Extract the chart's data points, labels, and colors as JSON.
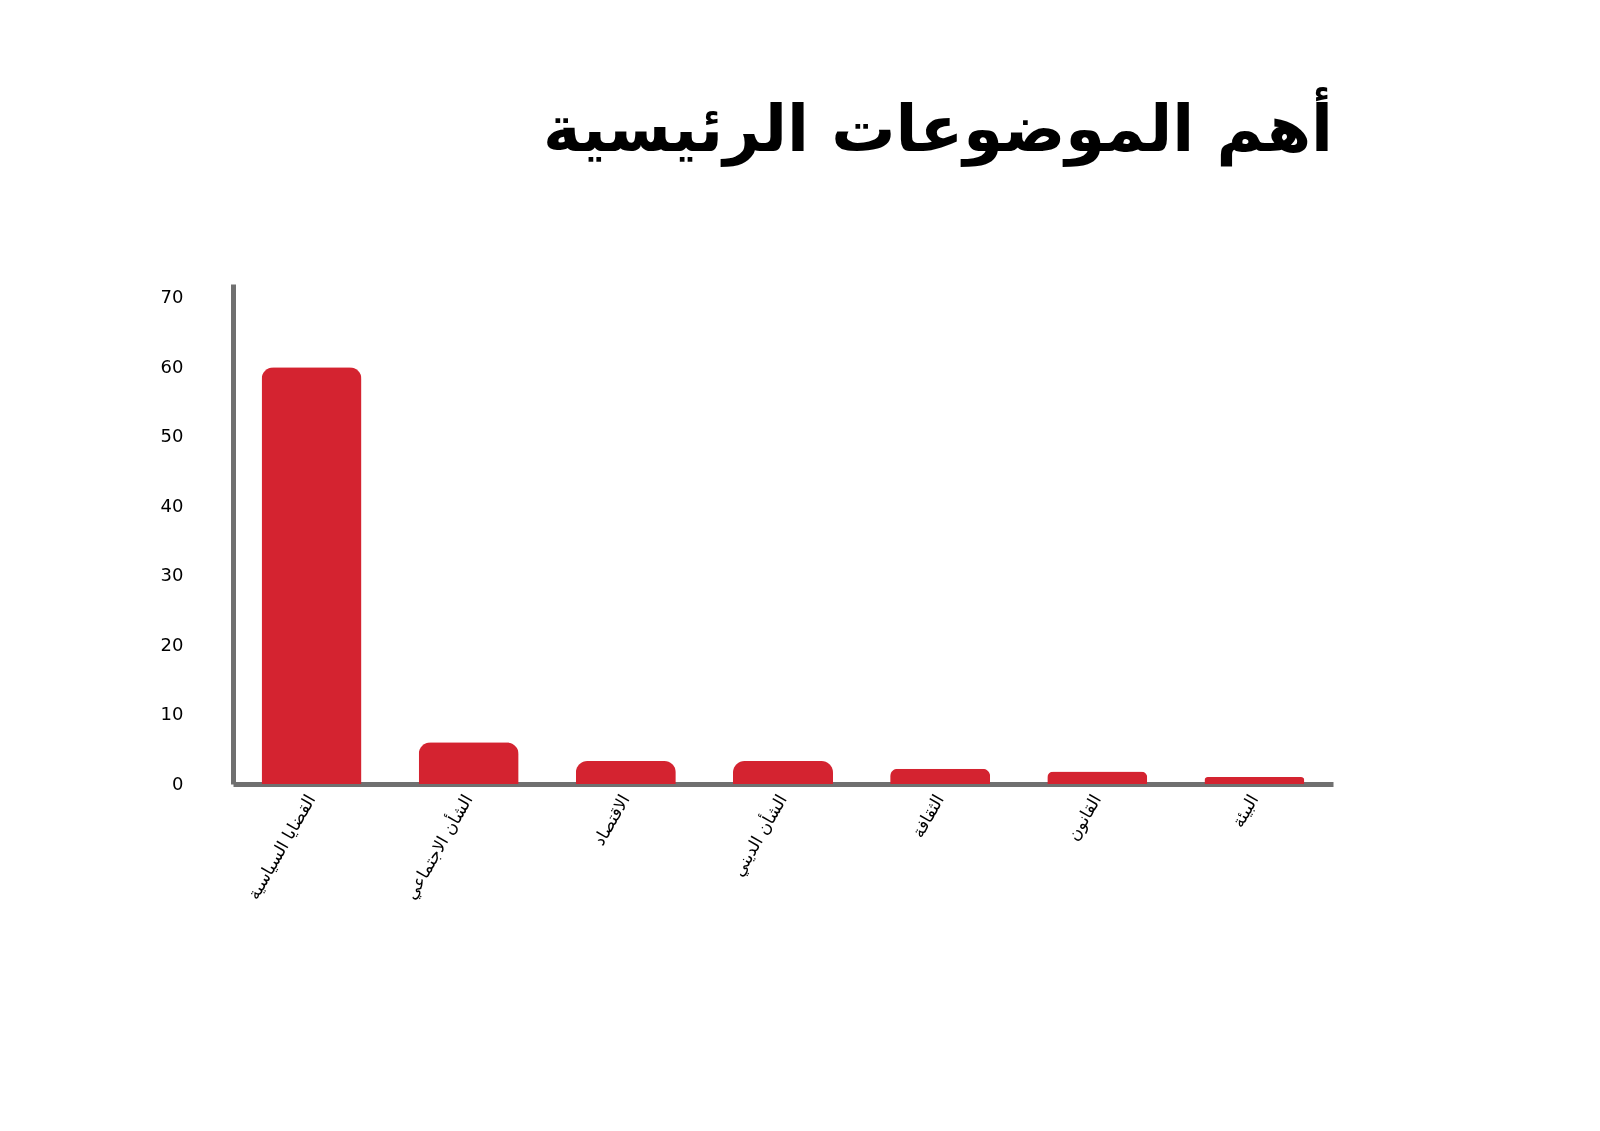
{
  "chart_data": {
    "type": "bar",
    "title": "أهم الموضوعات الرئيسية",
    "categories": [
      "القضايا السياسية",
      "الشأن الاجتماعي",
      "الاقتصاد",
      "الشأن الديني",
      "الثقافة",
      "القانون",
      "البيئة"
    ],
    "values": [
      60,
      6,
      3.3,
      3.3,
      2.2,
      1.8,
      1
    ],
    "color": "#d42330",
    "ylim": [
      0,
      72
    ],
    "yticks": [
      0,
      10,
      20,
      30,
      40,
      50,
      60,
      70
    ],
    "grid": false
  }
}
